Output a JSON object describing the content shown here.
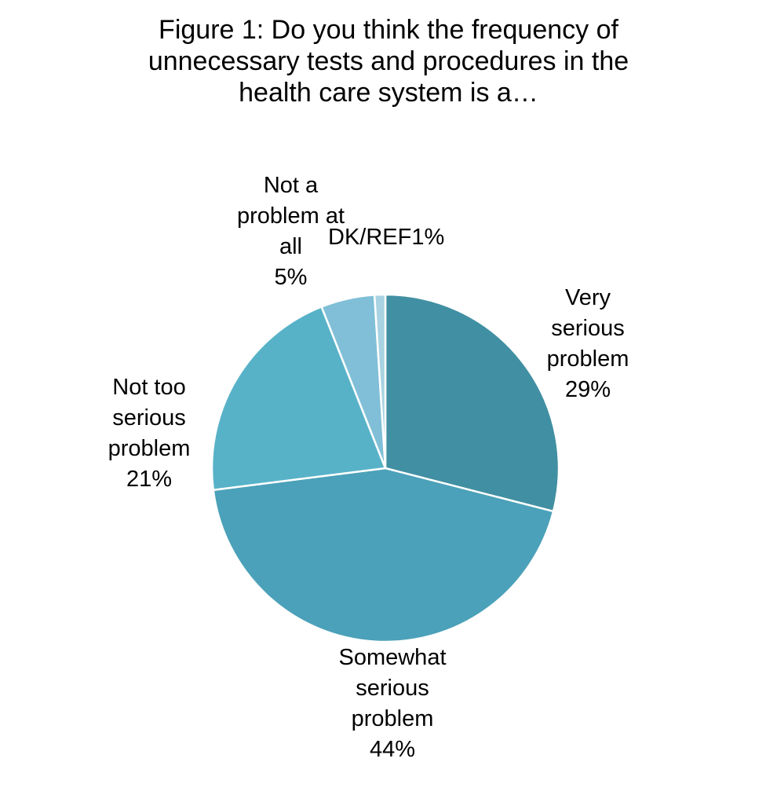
{
  "chart_data": {
    "type": "pie",
    "title_lines": [
      "Figure 1: Do you think the frequency of",
      "unnecessary tests and procedures in the",
      "health care system is a…"
    ],
    "start": "12 o'clock",
    "direction": "clockwise",
    "slices": [
      {
        "label_lines": [
          "Very",
          "serious",
          "problem"
        ],
        "value_text": "29%",
        "value": 29,
        "color": "#418FA2"
      },
      {
        "label_lines": [
          "Somewhat",
          "serious",
          "problem"
        ],
        "value_text": "44%",
        "value": 44,
        "color": "#4BA1B9"
      },
      {
        "label_lines": [
          "Not too",
          "serious",
          "problem"
        ],
        "value_text": "21%",
        "value": 21,
        "color": "#57B2C8"
      },
      {
        "label_lines": [
          "Not a",
          "problem at",
          "all"
        ],
        "value_text": "5%",
        "value": 5,
        "color": "#80BFD7"
      },
      {
        "label_lines": [
          "DK/REF"
        ],
        "value_text": "1%",
        "value": 1,
        "color": "#A9D3E2"
      }
    ]
  }
}
